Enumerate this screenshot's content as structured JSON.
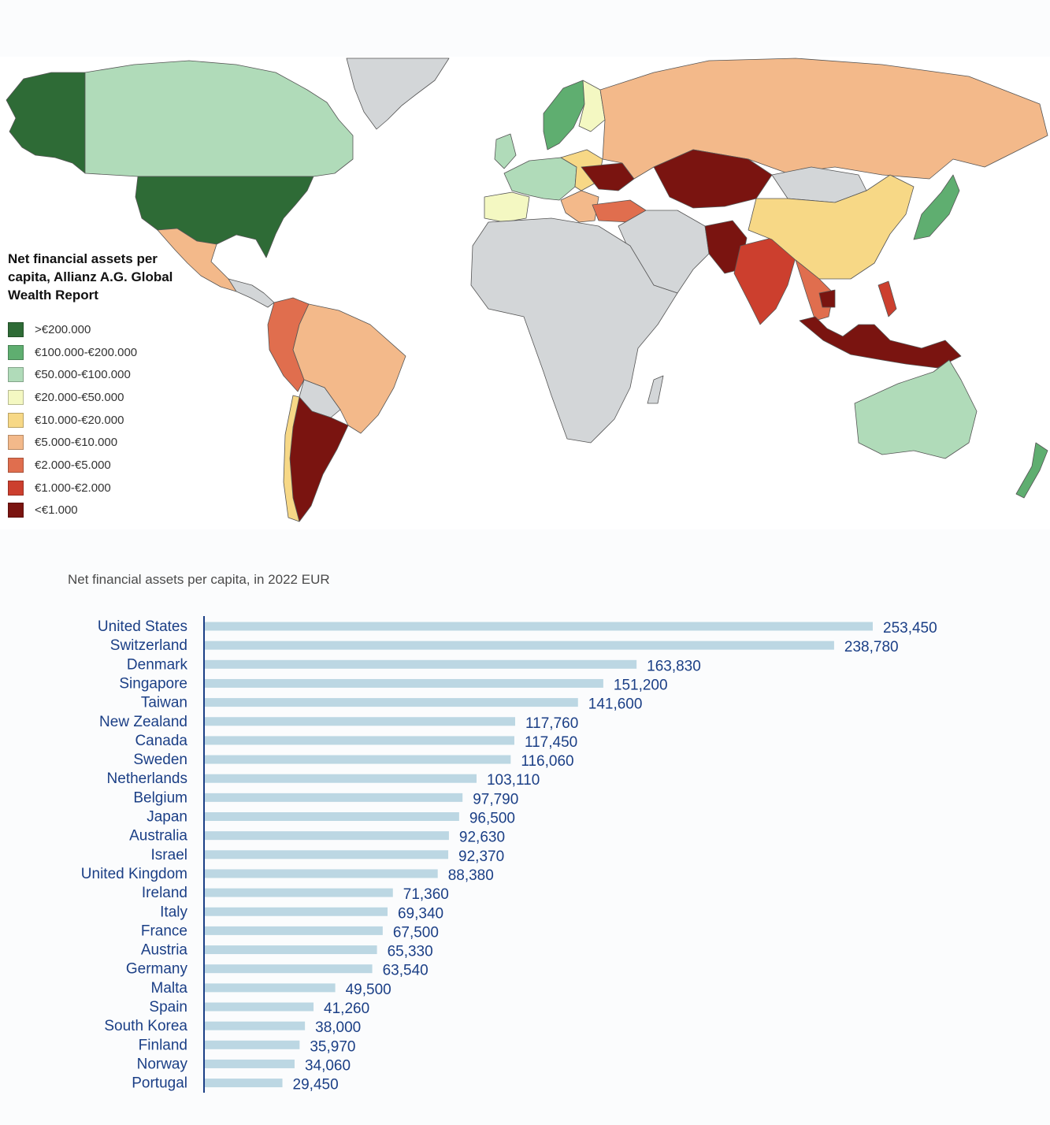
{
  "chart_data": [
    {
      "type": "choropleth",
      "legend": {
        "title": "Net financial assets per capita, Allianz A.G. Global Wealth Report",
        "placement": "left-middle",
        "classes": [
          {
            "label": ">€200.000",
            "color": "#2e6b36"
          },
          {
            "label": "€100.000-€200.000",
            "color": "#5fae70"
          },
          {
            "label": "€50.000-€100.000",
            "color": "#b0dbb9"
          },
          {
            "label": "€20.000-€50.000",
            "color": "#f4f8c2"
          },
          {
            "label": "€10.000-€20.000",
            "color": "#f7d886"
          },
          {
            "label": "€5.000-€10.000",
            "color": "#f3b98a"
          },
          {
            "label": "€2.000-€5.000",
            "color": "#e06e4e"
          },
          {
            "label": "€1.000-€2.000",
            "color": "#cc3f2e"
          },
          {
            "label": "<€1.000",
            "color": "#7a1410"
          }
        ],
        "no_data_color": "#d3d6d8"
      }
    },
    {
      "type": "bar",
      "orientation": "horizontal",
      "title": "Net financial assets per capita, in 2022 EUR",
      "bar_color": "#bcd7e3",
      "label_color": "#1b3f86",
      "categories": [
        "United States",
        "Switzerland",
        "Denmark",
        "Singapore",
        "Taiwan",
        "New Zealand",
        "Canada",
        "Sweden",
        "Netherlands",
        "Belgium",
        "Japan",
        "Australia",
        "Israel",
        "United Kingdom",
        "Ireland",
        "Italy",
        "France",
        "Austria",
        "Germany",
        "Malta",
        "Spain",
        "South Korea",
        "Finland",
        "Norway",
        "Portugal"
      ],
      "values": [
        253450,
        238780,
        163830,
        151200,
        141600,
        117760,
        117450,
        116060,
        103110,
        97790,
        96500,
        92630,
        92370,
        88380,
        71360,
        69340,
        67500,
        65330,
        63540,
        49500,
        41260,
        38000,
        35970,
        34060,
        29450
      ],
      "value_labels": [
        "253,450",
        "238,780",
        "163,830",
        "151,200",
        "141,600",
        "117,760",
        "117,450",
        "116,060",
        "103,110",
        "97,790",
        "96,500",
        "92,630",
        "92,370",
        "88,380",
        "71,360",
        "69,340",
        "67,500",
        "65,330",
        "63,540",
        "49,500",
        "41,260",
        "38,000",
        "35,970",
        "34,060",
        "29,450"
      ],
      "xlim": [
        0,
        253450
      ],
      "grid": false
    }
  ]
}
